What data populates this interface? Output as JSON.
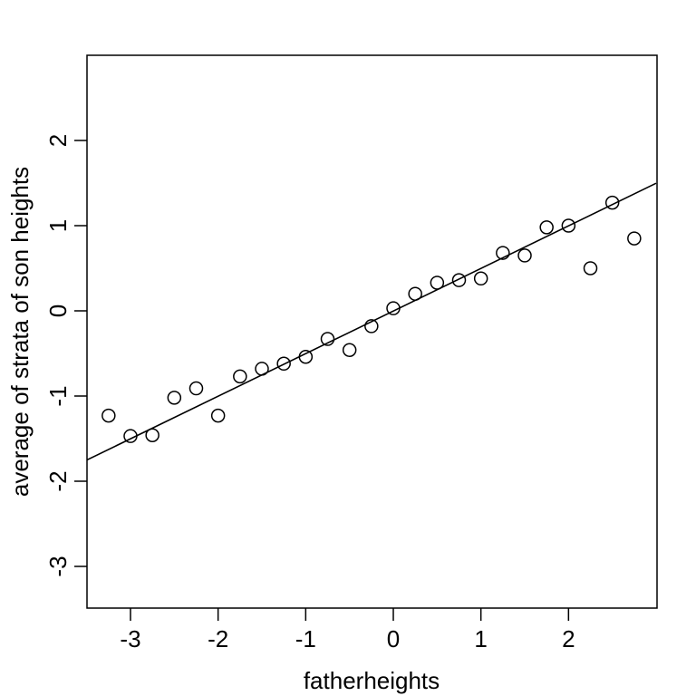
{
  "chart_data": {
    "type": "scatter",
    "title": "",
    "xlabel": "fatherheights",
    "ylabel": "average of strata of son heights",
    "xlim": [
      -3.5,
      3.0
    ],
    "ylim": [
      -3.5,
      3.0
    ],
    "x_ticks": [
      -3,
      -2,
      -1,
      0,
      1,
      2
    ],
    "y_ticks": [
      -3,
      -2,
      -1,
      0,
      1,
      2
    ],
    "x_tick_labels": [
      "-3",
      "-2",
      "-1",
      "0",
      "1",
      "2"
    ],
    "y_tick_labels": [
      "-3",
      "-2",
      "-1",
      "0",
      "1",
      "2"
    ],
    "grid": false,
    "series": [
      {
        "marker": "open-circle",
        "x": [
          -3.25,
          -3.0,
          -2.75,
          -2.5,
          -2.25,
          -2.0,
          -1.75,
          -1.5,
          -1.25,
          -1.0,
          -0.75,
          -0.5,
          -0.25,
          0.0,
          0.25,
          0.5,
          0.75,
          1.0,
          1.25,
          1.5,
          1.75,
          2.0,
          2.25,
          2.5,
          2.75
        ],
        "y": [
          -1.23,
          -1.47,
          -1.46,
          -1.02,
          -0.91,
          -1.23,
          -0.77,
          -0.68,
          -0.62,
          -0.54,
          -0.33,
          -0.46,
          -0.18,
          0.03,
          0.2,
          0.33,
          0.36,
          0.38,
          0.68,
          0.65,
          0.98,
          1.0,
          0.5,
          1.27,
          0.85
        ]
      }
    ],
    "fit_line": {
      "intercept": -0.002,
      "slope": 0.5
    }
  }
}
